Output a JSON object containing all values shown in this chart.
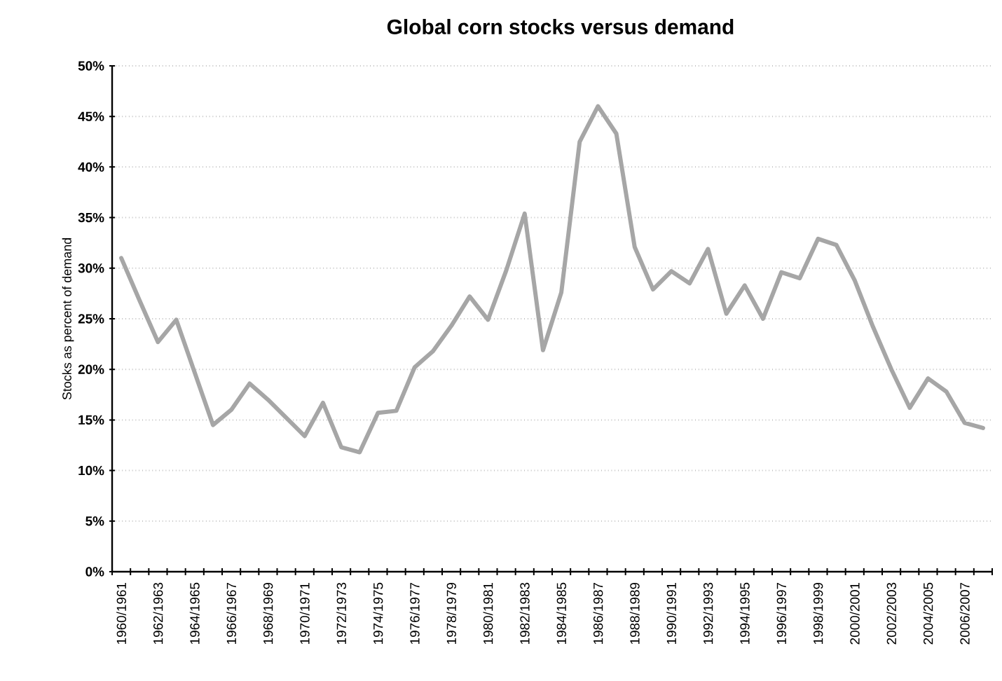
{
  "chart_data": {
    "type": "line",
    "title": "Global corn stocks versus demand",
    "ylabel": "Stocks as percent of demand",
    "categories": [
      "1960/1961",
      null,
      "1962/1963",
      null,
      "1964/1965",
      null,
      "1966/1967",
      null,
      "1968/1969",
      null,
      "1970/1971",
      null,
      "1972/1973",
      null,
      "1974/1975",
      null,
      "1976/1977",
      null,
      "1978/1979",
      null,
      "1980/1981",
      null,
      "1982/1983",
      null,
      "1984/1985",
      null,
      "1986/1987",
      null,
      "1988/1989",
      null,
      "1990/1991",
      null,
      "1992/1993",
      null,
      "1994/1995",
      null,
      "1996/1997",
      null,
      "1998/1999",
      null,
      "2000/2001",
      null,
      "2002/2003",
      null,
      "2004/2005",
      null,
      "2006/2007",
      null
    ],
    "series": [
      {
        "color": "#a6a6a6",
        "values": [
          31,
          26.8,
          22.7,
          24.9,
          19.7,
          14.5,
          16,
          18.6,
          17,
          15.2,
          13.4,
          16.7,
          12.3,
          11.8,
          15.7,
          15.9,
          20.2,
          21.8,
          24.3,
          27.2,
          24.9,
          29.8,
          35.4,
          21.9,
          27.6,
          42.5,
          46,
          43.3,
          32.1,
          27.9,
          29.7,
          28.5,
          31.9,
          25.5,
          28.3,
          25,
          29.6,
          29,
          32.9,
          32.3,
          28.8,
          24.2,
          20,
          16.2,
          19.1,
          17.8,
          14.7,
          14.2
        ]
      }
    ],
    "ylim": [
      0,
      50
    ],
    "yticks": [
      {
        "value": 0,
        "label": "0%"
      },
      {
        "value": 5,
        "label": "5%"
      },
      {
        "value": 10,
        "label": "10%"
      },
      {
        "value": 15,
        "label": "15%"
      },
      {
        "value": 20,
        "label": "20%"
      },
      {
        "value": 25,
        "label": "25%"
      },
      {
        "value": 30,
        "label": "30%"
      },
      {
        "value": 35,
        "label": "35%"
      },
      {
        "value": 40,
        "label": "40%"
      },
      {
        "value": 45,
        "label": "45%"
      },
      {
        "value": 50,
        "label": "50%"
      }
    ],
    "grid": "y",
    "marker": "none",
    "line_style": "solid"
  }
}
